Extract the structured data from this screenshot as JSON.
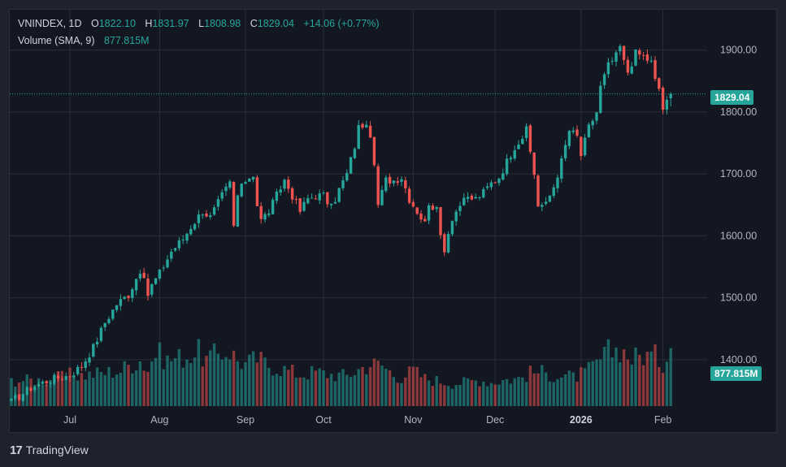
{
  "legend": {
    "symbol": "VNINDEX",
    "interval": "1D",
    "open_label": "O",
    "open": "1822.10",
    "high_label": "H",
    "high": "1831.97",
    "low_label": "L",
    "low": "1808.98",
    "close_label": "C",
    "close": "1829.04",
    "change": "+14.06 (+0.77%)",
    "volume_label": "Volume (SMA, 9)",
    "volume_value": "877.815M"
  },
  "price_tag": "1829.04",
  "volume_tag": "877.815M",
  "brand": {
    "logo_glyph": "17",
    "name": "TradingView"
  },
  "colors": {
    "up": "#26a69a",
    "down": "#ef5350",
    "background": "#131722",
    "grid": "#2a2e39"
  },
  "chart_data": {
    "type": "candlestick",
    "symbol": "VNINDEX",
    "interval": "1D",
    "y_ticks": [
      "1400.00",
      "1500.00",
      "1600.00",
      "1700.00",
      "1800.00",
      "1900.00"
    ],
    "ylim": [
      1325,
      1965
    ],
    "x_ticks": [
      {
        "label": "Jul",
        "bar": 15,
        "bold": false
      },
      {
        "label": "Aug",
        "bar": 38,
        "bold": false
      },
      {
        "label": "Sep",
        "bar": 60,
        "bold": false
      },
      {
        "label": "Oct",
        "bar": 80,
        "bold": false
      },
      {
        "label": "Nov",
        "bar": 103,
        "bold": false
      },
      {
        "label": "Dec",
        "bar": 124,
        "bold": false
      },
      {
        "label": "2026",
        "bar": 146,
        "bold": true
      },
      {
        "label": "Feb",
        "bar": 167,
        "bold": false
      }
    ],
    "last_close": 1829.04,
    "last_volume_m": 877.815,
    "close_points": [
      [
        0,
        1332
      ],
      [
        5,
        1355
      ],
      [
        10,
        1368
      ],
      [
        15,
        1375
      ],
      [
        18,
        1390
      ],
      [
        21,
        1420
      ],
      [
        24,
        1460
      ],
      [
        27,
        1490
      ],
      [
        30,
        1505
      ],
      [
        33,
        1545
      ],
      [
        35,
        1505
      ],
      [
        36,
        1520
      ],
      [
        38,
        1540
      ],
      [
        41,
        1575
      ],
      [
        44,
        1595
      ],
      [
        46,
        1615
      ],
      [
        49,
        1640
      ],
      [
        51,
        1630
      ],
      [
        54,
        1665
      ],
      [
        56,
        1685
      ],
      [
        57,
        1615
      ],
      [
        58,
        1665
      ],
      [
        60,
        1690
      ],
      [
        62,
        1700
      ],
      [
        63,
        1650
      ],
      [
        64,
        1625
      ],
      [
        66,
        1640
      ],
      [
        68,
        1665
      ],
      [
        70,
        1690
      ],
      [
        72,
        1665
      ],
      [
        74,
        1640
      ],
      [
        76,
        1660
      ],
      [
        78,
        1665
      ],
      [
        80,
        1665
      ],
      [
        82,
        1645
      ],
      [
        84,
        1675
      ],
      [
        86,
        1700
      ],
      [
        88,
        1745
      ],
      [
        89,
        1775
      ],
      [
        90,
        1780
      ],
      [
        92,
        1765
      ],
      [
        94,
        1650
      ],
      [
        96,
        1690
      ],
      [
        98,
        1690
      ],
      [
        100,
        1695
      ],
      [
        102,
        1660
      ],
      [
        104,
        1640
      ],
      [
        106,
        1620
      ],
      [
        107,
        1655
      ],
      [
        109,
        1640
      ],
      [
        110,
        1600
      ],
      [
        111,
        1580
      ],
      [
        113,
        1630
      ],
      [
        115,
        1650
      ],
      [
        117,
        1660
      ],
      [
        119,
        1660
      ],
      [
        121,
        1670
      ],
      [
        123,
        1685
      ],
      [
        125,
        1695
      ],
      [
        127,
        1720
      ],
      [
        129,
        1745
      ],
      [
        131,
        1760
      ],
      [
        132,
        1770
      ],
      [
        133,
        1735
      ],
      [
        134,
        1700
      ],
      [
        135,
        1650
      ],
      [
        137,
        1650
      ],
      [
        139,
        1680
      ],
      [
        141,
        1720
      ],
      [
        143,
        1770
      ],
      [
        145,
        1760
      ],
      [
        146,
        1730
      ],
      [
        148,
        1775
      ],
      [
        150,
        1800
      ],
      [
        151,
        1840
      ],
      [
        153,
        1875
      ],
      [
        155,
        1890
      ],
      [
        156,
        1905
      ],
      [
        157,
        1880
      ],
      [
        158,
        1865
      ],
      [
        160,
        1895
      ],
      [
        162,
        1890
      ],
      [
        164,
        1880
      ],
      [
        165,
        1850
      ],
      [
        166,
        1838
      ],
      [
        167,
        1805
      ],
      [
        168,
        1815
      ],
      [
        169,
        1829.04
      ]
    ],
    "volume_points": [
      [
        0,
        390
      ],
      [
        10,
        400
      ],
      [
        15,
        470
      ],
      [
        20,
        480
      ],
      [
        25,
        520
      ],
      [
        28,
        540
      ],
      [
        30,
        620
      ],
      [
        33,
        700
      ],
      [
        35,
        560
      ],
      [
        37,
        820
      ],
      [
        40,
        700
      ],
      [
        45,
        760
      ],
      [
        48,
        820
      ],
      [
        50,
        700
      ],
      [
        53,
        800
      ],
      [
        56,
        840
      ],
      [
        58,
        700
      ],
      [
        60,
        640
      ],
      [
        63,
        720
      ],
      [
        66,
        620
      ],
      [
        70,
        560
      ],
      [
        74,
        480
      ],
      [
        78,
        520
      ],
      [
        82,
        480
      ],
      [
        86,
        460
      ],
      [
        89,
        560
      ],
      [
        92,
        640
      ],
      [
        95,
        620
      ],
      [
        98,
        480
      ],
      [
        100,
        440
      ],
      [
        103,
        540
      ],
      [
        106,
        420
      ],
      [
        110,
        380
      ],
      [
        113,
        350
      ],
      [
        116,
        360
      ],
      [
        120,
        400
      ],
      [
        123,
        360
      ],
      [
        126,
        400
      ],
      [
        130,
        420
      ],
      [
        133,
        500
      ],
      [
        135,
        520
      ],
      [
        138,
        480
      ],
      [
        141,
        460
      ],
      [
        144,
        440
      ],
      [
        147,
        500
      ],
      [
        150,
        640
      ],
      [
        153,
        820
      ],
      [
        156,
        880
      ],
      [
        159,
        720
      ],
      [
        162,
        780
      ],
      [
        165,
        760
      ],
      [
        167,
        640
      ],
      [
        169,
        877.815
      ]
    ],
    "volume_max_m": 1600
  }
}
